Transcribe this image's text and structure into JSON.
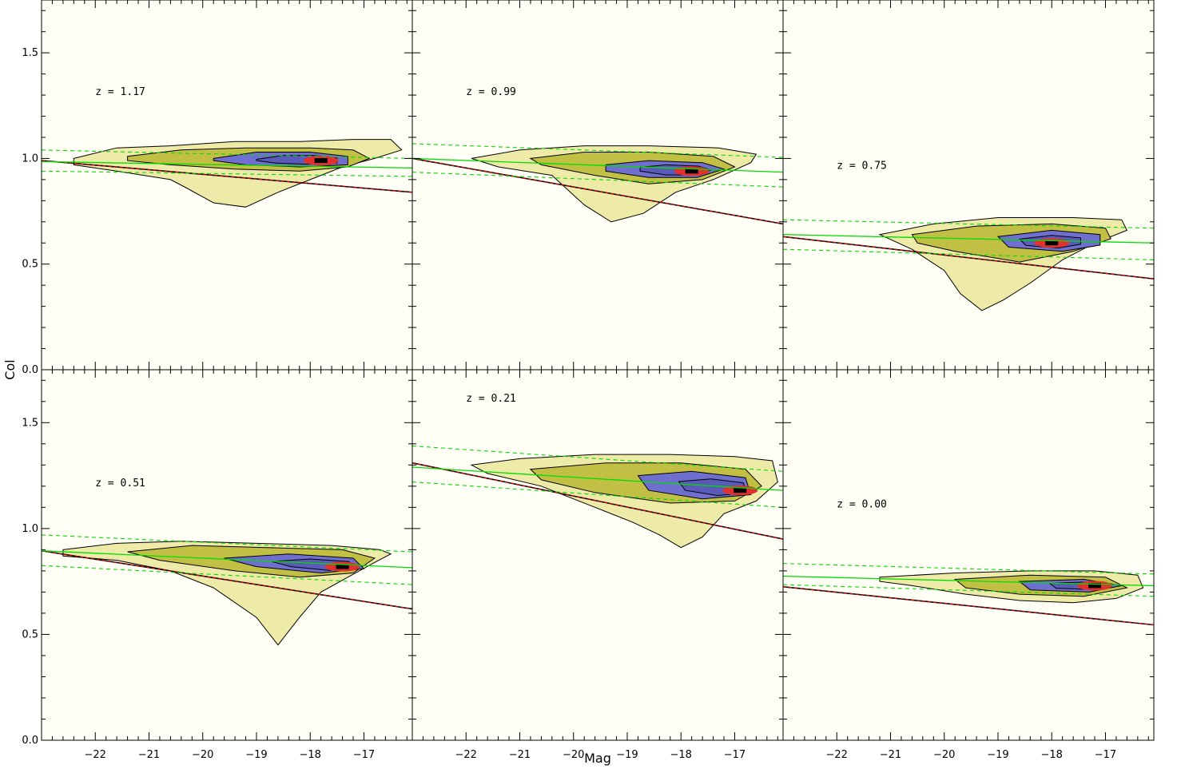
{
  "figure": {
    "xlabel": "Mag",
    "ylabel": "Col",
    "xlim": [
      -23.0,
      -16.1
    ],
    "ylim": [
      0.0,
      1.75
    ],
    "x_ticks": [
      -22,
      -21,
      -20,
      -19,
      -18,
      -17
    ],
    "y_ticks": [
      0.0,
      0.5,
      1.0,
      1.5
    ],
    "y_tick_labels": [
      "0.0",
      "0.5",
      "1.0",
      "1.5"
    ],
    "colors": {
      "background": "#fffff5",
      "contour_outline": "#000000",
      "fit_line": "#00dd00",
      "fit_scatter": "#00dd00",
      "cut_line": "#dd0000",
      "density_levels": [
        "#eeeaa8",
        "#d8d27a",
        "#c2c044",
        "#a4b038",
        "#7f95a0",
        "#6f6fd0",
        "#5a5ab8",
        "#e03030",
        "#000000"
      ]
    }
  },
  "chart_data": [
    {
      "type": "heatmap",
      "annotation": "z = 1.17",
      "annotation_pos": {
        "mag": -22.0,
        "col": 1.3
      },
      "fit": {
        "mag": [
          -23.0,
          -16.1
        ],
        "col": [
          0.985,
          0.955
        ]
      },
      "fit_scatter_upper": {
        "mag": [
          -23.0,
          -16.1
        ],
        "col": [
          1.04,
          1.0
        ]
      },
      "fit_scatter_lower": {
        "mag": [
          -23.0,
          -16.1
        ],
        "col": [
          0.94,
          0.915
        ]
      },
      "cut_line": {
        "mag": [
          -23.0,
          -16.1
        ],
        "col": [
          0.99,
          0.84
        ]
      },
      "density": {
        "outer": [
          [
            -22.4,
            1.0
          ],
          [
            -21.6,
            1.05
          ],
          [
            -20.6,
            1.06
          ],
          [
            -19.4,
            1.08
          ],
          [
            -18.2,
            1.08
          ],
          [
            -17.2,
            1.09
          ],
          [
            -16.5,
            1.09
          ],
          [
            -16.3,
            1.04
          ],
          [
            -16.8,
            1.0
          ],
          [
            -17.4,
            0.96
          ],
          [
            -18.0,
            0.9
          ],
          [
            -18.6,
            0.84
          ],
          [
            -19.2,
            0.77
          ],
          [
            -19.8,
            0.79
          ],
          [
            -20.3,
            0.86
          ],
          [
            -20.6,
            0.9
          ],
          [
            -21.6,
            0.94
          ],
          [
            -22.4,
            0.97
          ]
        ],
        "mid": [
          [
            -21.4,
            1.01
          ],
          [
            -20.4,
            1.04
          ],
          [
            -19.2,
            1.05
          ],
          [
            -18.0,
            1.05
          ],
          [
            -17.2,
            1.04
          ],
          [
            -16.9,
            1.0
          ],
          [
            -17.3,
            0.96
          ],
          [
            -18.2,
            0.94
          ],
          [
            -19.4,
            0.95
          ],
          [
            -20.6,
            0.97
          ],
          [
            -21.4,
            0.99
          ]
        ],
        "core": [
          [
            -19.8,
            1.0
          ],
          [
            -19.0,
            1.03
          ],
          [
            -18.0,
            1.03
          ],
          [
            -17.3,
            1.01
          ],
          [
            -17.3,
            0.97
          ],
          [
            -18.2,
            0.96
          ],
          [
            -19.2,
            0.97
          ],
          [
            -19.8,
            0.99
          ]
        ],
        "peak": {
          "mag": -17.8,
          "col": 0.99
        }
      }
    },
    {
      "type": "heatmap",
      "annotation": "z = 0.99",
      "annotation_pos": {
        "mag": -22.0,
        "col": 1.3
      },
      "fit": {
        "mag": [
          -23.0,
          -16.1
        ],
        "col": [
          1.0,
          0.935
        ]
      },
      "fit_scatter_upper": {
        "mag": [
          -23.0,
          -16.1
        ],
        "col": [
          1.07,
          1.005
        ]
      },
      "fit_scatter_lower": {
        "mag": [
          -23.0,
          -16.1
        ],
        "col": [
          0.935,
          0.865
        ]
      },
      "cut_line": {
        "mag": [
          -23.0,
          -16.1
        ],
        "col": [
          1.0,
          0.69
        ]
      },
      "density": {
        "outer": [
          [
            -21.9,
            1.0
          ],
          [
            -21.0,
            1.04
          ],
          [
            -19.8,
            1.06
          ],
          [
            -18.6,
            1.06
          ],
          [
            -17.3,
            1.05
          ],
          [
            -16.6,
            1.02
          ],
          [
            -16.7,
            0.98
          ],
          [
            -17.4,
            0.9
          ],
          [
            -18.1,
            0.84
          ],
          [
            -18.7,
            0.74
          ],
          [
            -19.3,
            0.7
          ],
          [
            -19.8,
            0.78
          ],
          [
            -20.4,
            0.92
          ],
          [
            -21.4,
            0.96
          ]
        ],
        "mid": [
          [
            -20.8,
            1.0
          ],
          [
            -19.8,
            1.03
          ],
          [
            -18.6,
            1.03
          ],
          [
            -17.4,
            1.01
          ],
          [
            -17.0,
            0.96
          ],
          [
            -17.6,
            0.9
          ],
          [
            -18.6,
            0.88
          ],
          [
            -19.6,
            0.92
          ],
          [
            -20.6,
            0.97
          ]
        ],
        "core": [
          [
            -19.4,
            0.97
          ],
          [
            -18.6,
            0.99
          ],
          [
            -17.6,
            0.98
          ],
          [
            -17.2,
            0.95
          ],
          [
            -17.7,
            0.91
          ],
          [
            -18.6,
            0.91
          ],
          [
            -19.4,
            0.94
          ]
        ],
        "peak": {
          "mag": -17.8,
          "col": 0.94
        }
      }
    },
    {
      "type": "heatmap",
      "annotation": "z = 0.75",
      "annotation_pos": {
        "mag": -22.0,
        "col": 0.95
      },
      "fit": {
        "mag": [
          -23.0,
          -16.1
        ],
        "col": [
          0.64,
          0.6
        ]
      },
      "fit_scatter_upper": {
        "mag": [
          -23.0,
          -16.1
        ],
        "col": [
          0.71,
          0.67
        ]
      },
      "fit_scatter_lower": {
        "mag": [
          -23.0,
          -16.1
        ],
        "col": [
          0.57,
          0.52
        ]
      },
      "cut_line": {
        "mag": [
          -23.0,
          -16.1
        ],
        "col": [
          0.63,
          0.43
        ]
      },
      "density": {
        "outer": [
          [
            -21.2,
            0.64
          ],
          [
            -20.2,
            0.69
          ],
          [
            -19.0,
            0.72
          ],
          [
            -17.6,
            0.72
          ],
          [
            -16.7,
            0.71
          ],
          [
            -16.6,
            0.66
          ],
          [
            -17.2,
            0.6
          ],
          [
            -17.8,
            0.52
          ],
          [
            -18.4,
            0.41
          ],
          [
            -18.9,
            0.33
          ],
          [
            -19.3,
            0.28
          ],
          [
            -19.7,
            0.36
          ],
          [
            -20.0,
            0.47
          ],
          [
            -20.6,
            0.57
          ]
        ],
        "mid": [
          [
            -20.6,
            0.64
          ],
          [
            -19.4,
            0.68
          ],
          [
            -18.0,
            0.69
          ],
          [
            -17.0,
            0.67
          ],
          [
            -16.9,
            0.62
          ],
          [
            -17.6,
            0.56
          ],
          [
            -18.6,
            0.51
          ],
          [
            -19.8,
            0.56
          ],
          [
            -20.5,
            0.6
          ]
        ],
        "core": [
          [
            -19.0,
            0.63
          ],
          [
            -18.0,
            0.66
          ],
          [
            -17.1,
            0.64
          ],
          [
            -17.1,
            0.59
          ],
          [
            -17.8,
            0.56
          ],
          [
            -18.8,
            0.58
          ]
        ],
        "peak": {
          "mag": -18.0,
          "col": 0.6
        }
      }
    },
    {
      "type": "heatmap",
      "annotation": "z = 0.51",
      "annotation_pos": {
        "mag": -22.0,
        "col": 1.2
      },
      "fit": {
        "mag": [
          -23.0,
          -16.1
        ],
        "col": [
          0.895,
          0.815
        ]
      },
      "fit_scatter_upper": {
        "mag": [
          -23.0,
          -16.1
        ],
        "col": [
          0.97,
          0.89
        ]
      },
      "fit_scatter_lower": {
        "mag": [
          -23.0,
          -16.1
        ],
        "col": [
          0.825,
          0.735
        ]
      },
      "cut_line": {
        "mag": [
          -23.0,
          -16.1
        ],
        "col": [
          0.895,
          0.62
        ]
      },
      "density": {
        "outer": [
          [
            -22.6,
            0.9
          ],
          [
            -21.6,
            0.93
          ],
          [
            -20.4,
            0.94
          ],
          [
            -19.0,
            0.93
          ],
          [
            -17.6,
            0.92
          ],
          [
            -16.7,
            0.9
          ],
          [
            -16.5,
            0.88
          ],
          [
            -16.8,
            0.84
          ],
          [
            -17.3,
            0.77
          ],
          [
            -17.8,
            0.7
          ],
          [
            -18.2,
            0.58
          ],
          [
            -18.6,
            0.45
          ],
          [
            -19.0,
            0.58
          ],
          [
            -19.8,
            0.72
          ],
          [
            -20.6,
            0.8
          ],
          [
            -21.6,
            0.85
          ],
          [
            -22.6,
            0.87
          ]
        ],
        "mid": [
          [
            -21.4,
            0.89
          ],
          [
            -20.2,
            0.92
          ],
          [
            -18.8,
            0.91
          ],
          [
            -17.4,
            0.9
          ],
          [
            -16.8,
            0.86
          ],
          [
            -17.2,
            0.79
          ],
          [
            -18.2,
            0.77
          ],
          [
            -19.4,
            0.8
          ],
          [
            -20.8,
            0.85
          ]
        ],
        "core": [
          [
            -19.6,
            0.86
          ],
          [
            -18.4,
            0.88
          ],
          [
            -17.2,
            0.86
          ],
          [
            -17.0,
            0.81
          ],
          [
            -17.8,
            0.79
          ],
          [
            -19.0,
            0.82
          ]
        ],
        "peak": {
          "mag": -17.4,
          "col": 0.82
        }
      }
    },
    {
      "type": "heatmap",
      "annotation": "z = 0.21",
      "annotation_pos": {
        "mag": -22.0,
        "col": 1.6
      },
      "fit": {
        "mag": [
          -23.0,
          -16.1
        ],
        "col": [
          1.29,
          1.18
        ]
      },
      "fit_scatter_upper": {
        "mag": [
          -23.0,
          -16.1
        ],
        "col": [
          1.39,
          1.27
        ]
      },
      "fit_scatter_lower": {
        "mag": [
          -23.0,
          -16.1
        ],
        "col": [
          1.22,
          1.1
        ]
      },
      "cut_line": {
        "mag": [
          -23.0,
          -16.1
        ],
        "col": [
          1.31,
          0.95
        ]
      },
      "density": {
        "outer": [
          [
            -21.9,
            1.3
          ],
          [
            -21.0,
            1.33
          ],
          [
            -19.6,
            1.35
          ],
          [
            -18.2,
            1.35
          ],
          [
            -17.0,
            1.34
          ],
          [
            -16.3,
            1.32
          ],
          [
            -16.2,
            1.22
          ],
          [
            -16.6,
            1.13
          ],
          [
            -17.2,
            1.07
          ],
          [
            -17.6,
            0.96
          ],
          [
            -18.0,
            0.91
          ],
          [
            -18.4,
            0.97
          ],
          [
            -18.9,
            1.03
          ],
          [
            -19.6,
            1.1
          ],
          [
            -20.6,
            1.2
          ],
          [
            -21.6,
            1.26
          ]
        ],
        "mid": [
          [
            -20.8,
            1.28
          ],
          [
            -19.4,
            1.31
          ],
          [
            -18.0,
            1.31
          ],
          [
            -16.8,
            1.28
          ],
          [
            -16.5,
            1.2
          ],
          [
            -17.0,
            1.13
          ],
          [
            -18.2,
            1.12
          ],
          [
            -19.6,
            1.17
          ],
          [
            -20.6,
            1.23
          ]
        ],
        "core": [
          [
            -18.8,
            1.25
          ],
          [
            -17.8,
            1.27
          ],
          [
            -16.8,
            1.24
          ],
          [
            -16.7,
            1.16
          ],
          [
            -17.6,
            1.14
          ],
          [
            -18.6,
            1.18
          ]
        ],
        "peak": {
          "mag": -16.9,
          "col": 1.18
        }
      }
    },
    {
      "type": "heatmap",
      "annotation": "z = 0.00",
      "annotation_pos": {
        "mag": -22.0,
        "col": 1.1
      },
      "fit": {
        "mag": [
          -23.0,
          -16.1
        ],
        "col": [
          0.775,
          0.73
        ]
      },
      "fit_scatter_upper": {
        "mag": [
          -23.0,
          -16.1
        ],
        "col": [
          0.835,
          0.785
        ]
      },
      "fit_scatter_lower": {
        "mag": [
          -23.0,
          -16.1
        ],
        "col": [
          0.735,
          0.68
        ]
      },
      "cut_line": {
        "mag": [
          -23.0,
          -16.1
        ],
        "col": [
          0.725,
          0.545
        ]
      },
      "density": {
        "outer": [
          [
            -21.2,
            0.77
          ],
          [
            -19.8,
            0.79
          ],
          [
            -18.4,
            0.8
          ],
          [
            -17.2,
            0.8
          ],
          [
            -16.4,
            0.78
          ],
          [
            -16.3,
            0.72
          ],
          [
            -16.8,
            0.67
          ],
          [
            -17.6,
            0.65
          ],
          [
            -18.6,
            0.66
          ],
          [
            -19.6,
            0.69
          ],
          [
            -20.6,
            0.73
          ],
          [
            -21.2,
            0.75
          ]
        ],
        "mid": [
          [
            -19.8,
            0.76
          ],
          [
            -18.4,
            0.78
          ],
          [
            -17.0,
            0.77
          ],
          [
            -16.6,
            0.72
          ],
          [
            -17.4,
            0.68
          ],
          [
            -18.6,
            0.69
          ],
          [
            -19.6,
            0.72
          ]
        ],
        "core": [
          [
            -18.6,
            0.75
          ],
          [
            -17.4,
            0.76
          ],
          [
            -16.7,
            0.73
          ],
          [
            -17.3,
            0.7
          ],
          [
            -18.4,
            0.71
          ]
        ],
        "peak": {
          "mag": -17.2,
          "col": 0.73
        }
      }
    }
  ]
}
